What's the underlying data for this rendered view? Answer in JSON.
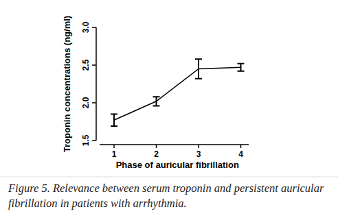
{
  "chart_data": {
    "type": "line",
    "x_label": "Phase of auricular fibrillation",
    "y_label": "Troponin concentrations (ng/ml)",
    "categories": [
      "1",
      "2",
      "3",
      "4"
    ],
    "values": [
      1.77,
      2.02,
      2.45,
      2.47
    ],
    "errors": [
      0.08,
      0.06,
      0.13,
      0.05
    ],
    "color": "#000000",
    "ylim": [
      1.5,
      3.0
    ],
    "yticks": [
      1.5,
      {
        "value": 2.0,
        "label": "2.0"
      },
      2.5,
      {
        "value": 3.0,
        "label": "3.0"
      }
    ],
    "grid": false
  },
  "caption": "Figure 5. Relevance between serum troponin and persistent auricular fibrillation in patients with arrhythmia."
}
